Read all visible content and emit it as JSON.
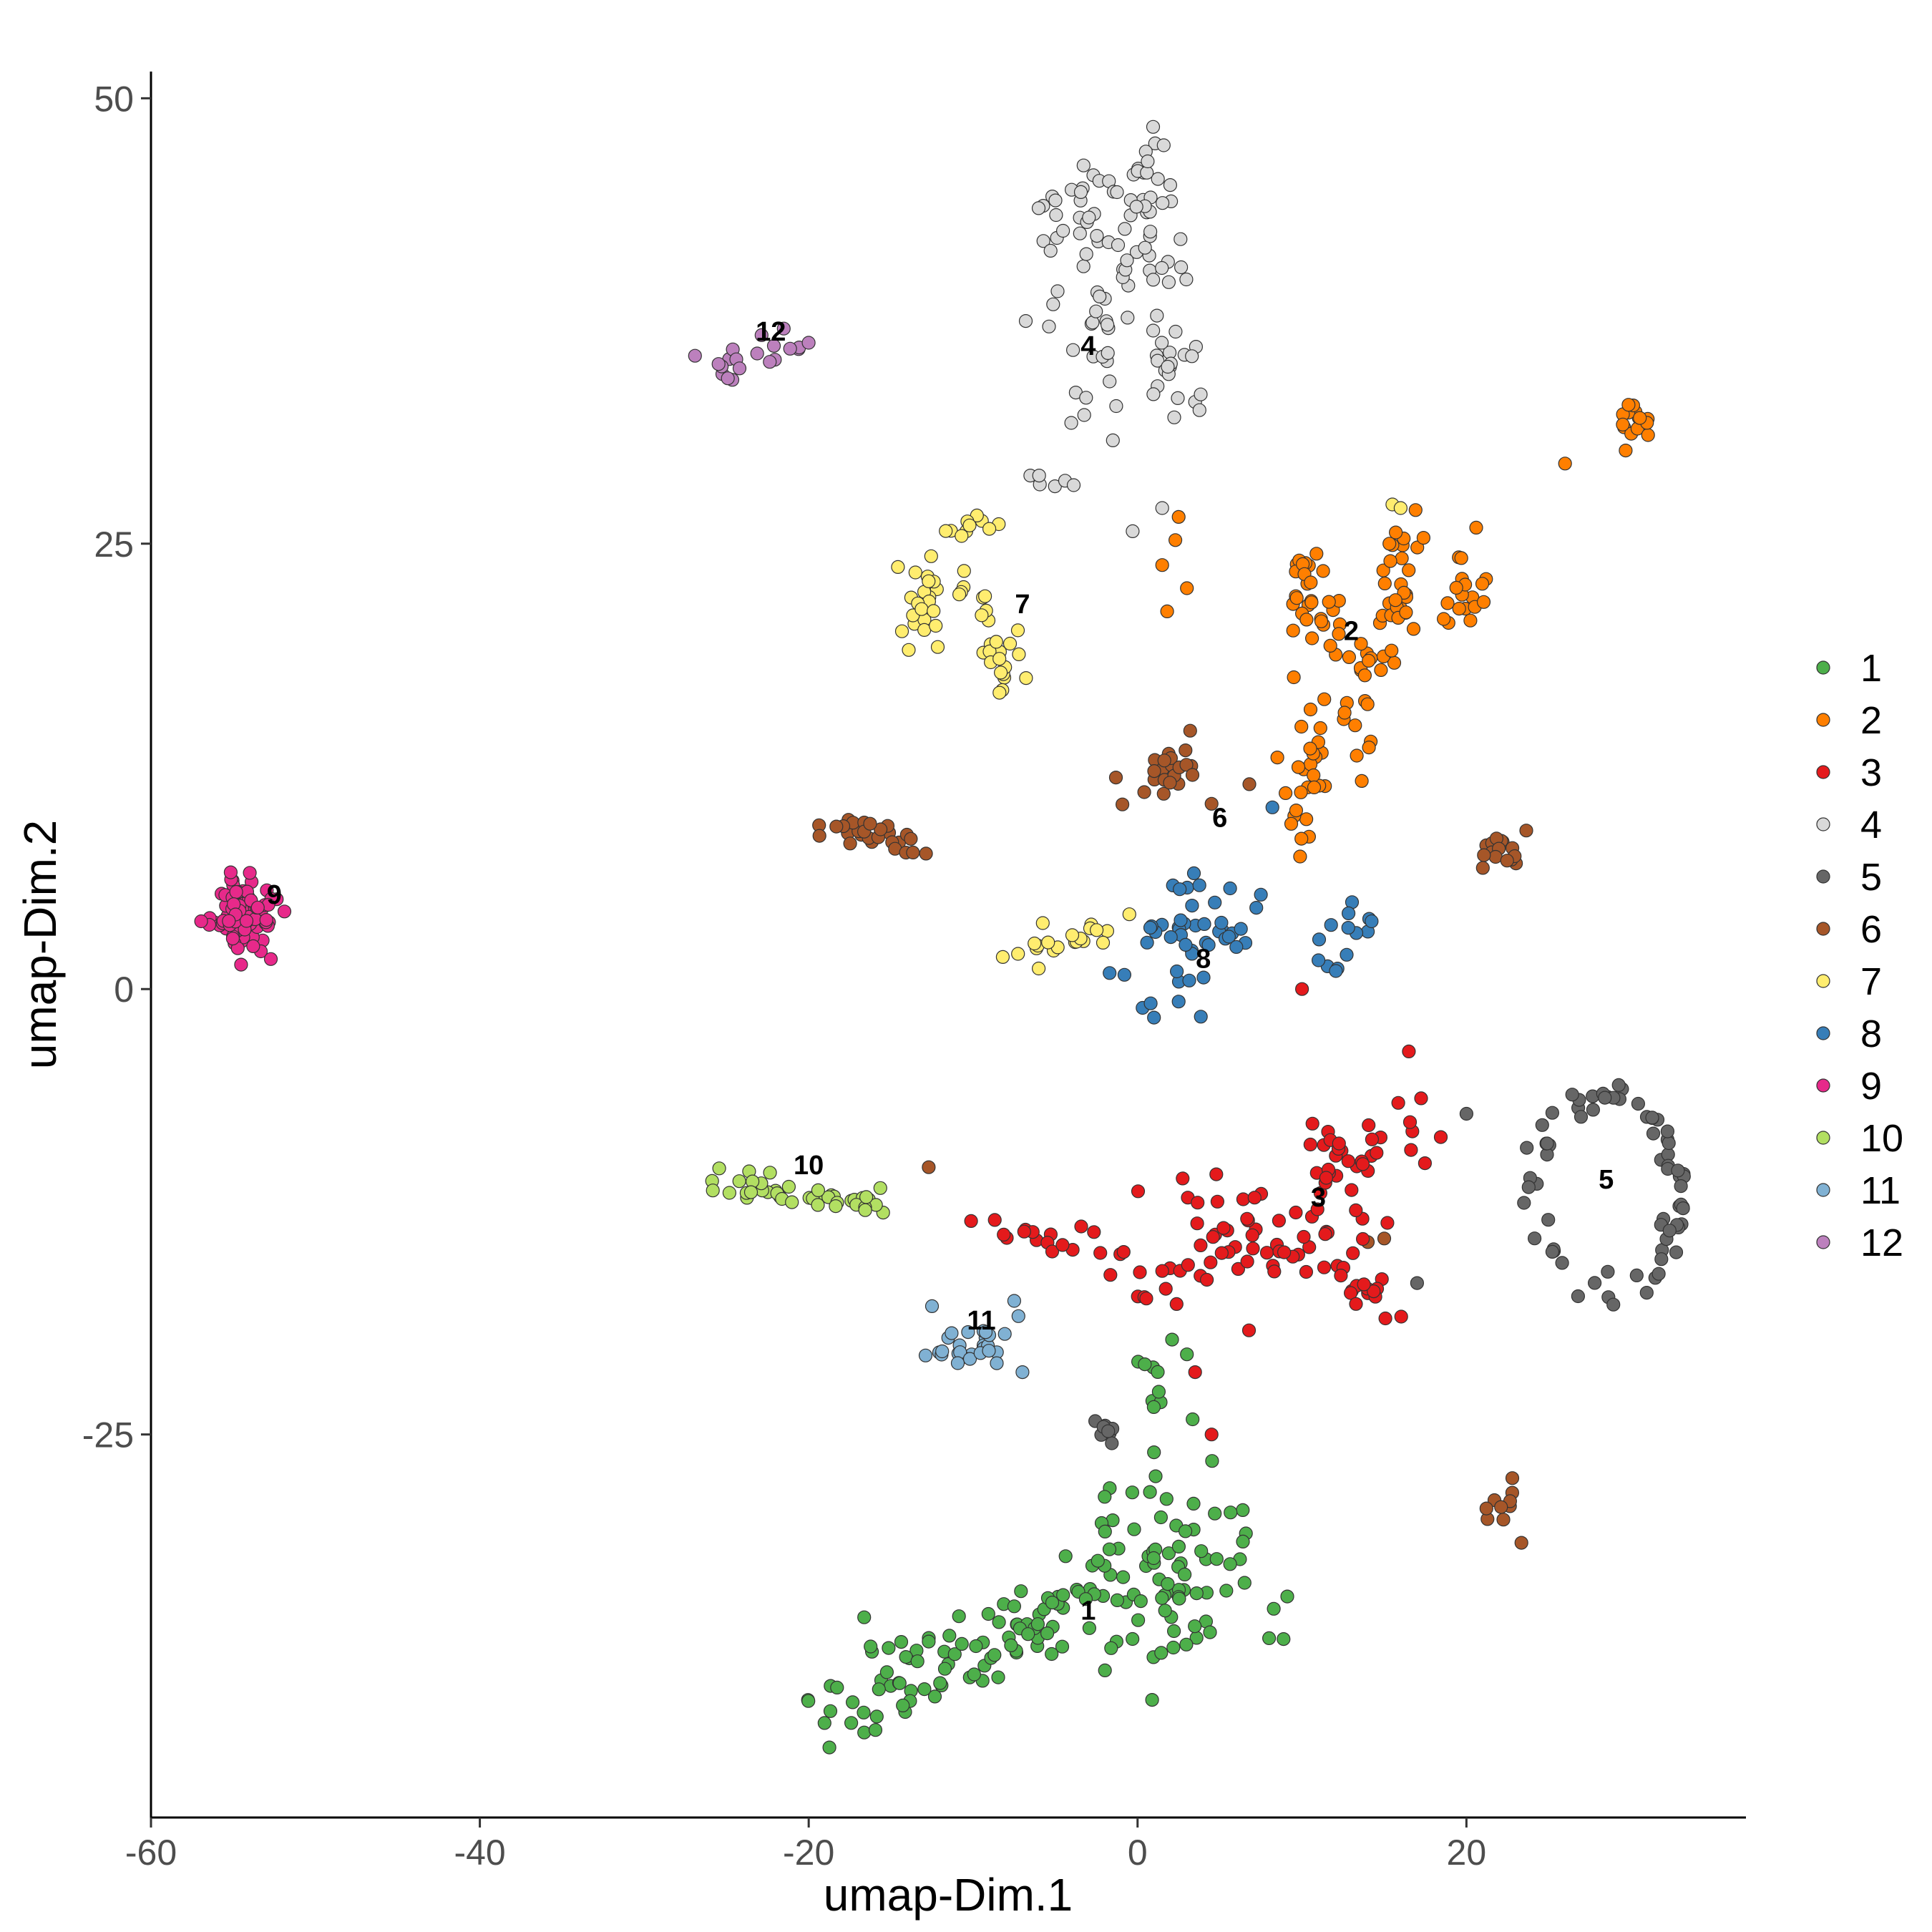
{
  "chart_data": {
    "type": "scatter",
    "title": "",
    "xlabel": "umap-Dim.1",
    "ylabel": "umap-Dim.2",
    "xlim": [
      -60,
      37
    ],
    "ylim": [
      -46.5,
      51.5
    ],
    "xticks": [
      -60,
      -40,
      -20,
      0,
      20
    ],
    "yticks": [
      -25,
      0,
      25,
      50
    ],
    "xtick_labels": [
      "-60",
      "-40",
      "-20",
      "0",
      "20"
    ],
    "ytick_labels": [
      "-25",
      "0",
      "25",
      "50"
    ],
    "grid": false,
    "legend_position": "right",
    "clusters": [
      {
        "id": "1",
        "color": "#4DAF4A",
        "label_pos": [
          -3,
          -35
        ]
      },
      {
        "id": "2",
        "color": "#FF7F00",
        "label_pos": [
          13,
          20
        ]
      },
      {
        "id": "3",
        "color": "#E41A1C",
        "label_pos": [
          11,
          -11.8
        ]
      },
      {
        "id": "4",
        "color": "#D9D9D9",
        "label_pos": [
          -3,
          36
        ]
      },
      {
        "id": "5",
        "color": "#666666",
        "label_pos": [
          28.5,
          -10.8
        ]
      },
      {
        "id": "6",
        "color": "#A65628",
        "label_pos": [
          5,
          9.5
        ]
      },
      {
        "id": "7",
        "color": "#FFED6F",
        "label_pos": [
          -7,
          21.5
        ]
      },
      {
        "id": "8",
        "color": "#377EB8",
        "label_pos": [
          4,
          1.6
        ]
      },
      {
        "id": "9",
        "color": "#E7298A",
        "label_pos": [
          -52.5,
          5.2
        ]
      },
      {
        "id": "10",
        "color": "#B2DF62",
        "label_pos": [
          -20,
          -10
        ]
      },
      {
        "id": "11",
        "color": "#80B1D3",
        "label_pos": [
          -9.5,
          -18.7
        ]
      },
      {
        "id": "12",
        "color": "#BC80BD",
        "label_pos": [
          -22.3,
          36.8
        ]
      }
    ],
    "blobs": [
      {
        "cluster": "9",
        "shape": "gauss",
        "n": 95,
        "x": [
          -54.2,
          1.0
        ],
        "y": [
          4.2,
          1.0
        ]
      },
      {
        "cluster": "12",
        "shape": "segment",
        "n": 20,
        "from": [
          -26,
          34.8
        ],
        "to": [
          -20,
          36.2
        ],
        "jitter": 0.6
      },
      {
        "cluster": "4",
        "shape": "segment",
        "n": 55,
        "from": [
          -3,
          46
        ],
        "to": [
          -3,
          33
        ],
        "jitter": 1.5
      },
      {
        "cluster": "4",
        "shape": "segment",
        "n": 40,
        "from": [
          0,
          47
        ],
        "to": [
          1,
          40
        ],
        "jitter": 1.0
      },
      {
        "cluster": "4",
        "shape": "gauss",
        "n": 22,
        "x": [
          2.2,
          1.2
        ],
        "y": [
          35,
          1.8
        ]
      },
      {
        "cluster": "4",
        "shape": "segment",
        "n": 6,
        "from": [
          -7,
          29
        ],
        "to": [
          -4.5,
          28
        ],
        "jitter": 0.4
      },
      {
        "cluster": "4",
        "shape": "points",
        "pts": [
          [
            -1.5,
            30.8
          ],
          [
            1.5,
            27
          ],
          [
            -0.3,
            25.7
          ],
          [
            -6.8,
            37.5
          ]
        ]
      },
      {
        "cluster": "7",
        "shape": "gauss",
        "n": 22,
        "x": [
          -13,
          0.6
        ],
        "y": [
          21.5,
          1.3
        ]
      },
      {
        "cluster": "7",
        "shape": "segment",
        "n": 10,
        "from": [
          -12.5,
          24.5
        ],
        "to": [
          -8,
          27
        ],
        "jitter": 0.5
      },
      {
        "cluster": "7",
        "shape": "gauss",
        "n": 18,
        "x": [
          -8.5,
          0.8
        ],
        "y": [
          18.5,
          1.0
        ]
      },
      {
        "cluster": "7",
        "shape": "segment",
        "n": 8,
        "from": [
          -11,
          22.5
        ],
        "to": [
          -9,
          20.5
        ],
        "jitter": 0.4
      },
      {
        "cluster": "7",
        "shape": "segment",
        "n": 20,
        "from": [
          -7.5,
          1.8
        ],
        "to": [
          -2,
          3.5
        ],
        "jitter": 0.5
      },
      {
        "cluster": "7",
        "shape": "points",
        "pts": [
          [
            15.5,
            27.2
          ],
          [
            16,
            27.0
          ],
          [
            -0.5,
            4.2
          ]
        ]
      },
      {
        "cluster": "2",
        "shape": "gauss",
        "n": 16,
        "x": [
          30,
          0.6
        ],
        "y": [
          31.8,
          0.6
        ]
      },
      {
        "cluster": "2",
        "shape": "segment",
        "n": 40,
        "from": [
          11,
          12
        ],
        "to": [
          15,
          19.5
        ],
        "jitter": 1.0
      },
      {
        "cluster": "2",
        "shape": "segment",
        "n": 30,
        "from": [
          10,
          23.5
        ],
        "to": [
          12,
          19
        ],
        "jitter": 0.7
      },
      {
        "cluster": "2",
        "shape": "segment",
        "n": 25,
        "from": [
          16,
          26.5
        ],
        "to": [
          16,
          20
        ],
        "jitter": 0.6
      },
      {
        "cluster": "2",
        "shape": "gauss",
        "n": 18,
        "x": [
          19.5,
          0.9
        ],
        "y": [
          22,
          1.2
        ]
      },
      {
        "cluster": "2",
        "shape": "segment",
        "n": 10,
        "from": [
          10,
          12
        ],
        "to": [
          10,
          7.5
        ],
        "jitter": 0.5
      },
      {
        "cluster": "2",
        "shape": "points",
        "pts": [
          [
            2.5,
            26.5
          ],
          [
            2.3,
            25.2
          ],
          [
            1.5,
            23.8
          ],
          [
            3,
            22.5
          ],
          [
            1.8,
            21.2
          ],
          [
            26,
            29.5
          ],
          [
            9.5,
            17.5
          ],
          [
            8.5,
            13
          ],
          [
            10.5,
            13.5
          ],
          [
            9,
            11
          ]
        ]
      },
      {
        "cluster": "6",
        "shape": "gauss",
        "n": 22,
        "x": [
          1.8,
          1.2
        ],
        "y": [
          12.2,
          0.9
        ]
      },
      {
        "cluster": "6",
        "shape": "points",
        "pts": [
          [
            3.2,
            14.5
          ],
          [
            6.8,
            11.5
          ],
          [
            4.5,
            10.4
          ]
        ]
      },
      {
        "cluster": "6",
        "shape": "segment",
        "n": 28,
        "from": [
          -19.5,
          9.5
        ],
        "to": [
          -13.5,
          8
        ],
        "jitter": 0.5
      },
      {
        "cluster": "6",
        "shape": "gauss",
        "n": 15,
        "x": [
          22.5,
          0.7
        ],
        "y": [
          8.2,
          0.6
        ]
      },
      {
        "cluster": "6",
        "shape": "points",
        "pts": [
          [
            21,
            6.8
          ],
          [
            -12.7,
            -10
          ],
          [
            14,
            -14.2
          ],
          [
            15,
            -14
          ]
        ]
      },
      {
        "cluster": "6",
        "shape": "gauss",
        "n": 10,
        "x": [
          22.5,
          0.5
        ],
        "y": [
          -29.2,
          0.9
        ]
      },
      {
        "cluster": "8",
        "shape": "gauss",
        "n": 42,
        "x": [
          3.5,
          1.7
        ],
        "y": [
          3,
          1.7
        ]
      },
      {
        "cluster": "8",
        "shape": "gauss",
        "n": 14,
        "x": [
          12.5,
          1.1
        ],
        "y": [
          3.7,
          1.2
        ]
      },
      {
        "cluster": "8",
        "shape": "points",
        "pts": [
          [
            -1.7,
            0.9
          ],
          [
            -0.8,
            0.8
          ],
          [
            1.0,
            -1.6
          ],
          [
            0.8,
            -0.8
          ],
          [
            2.5,
            -0.7
          ],
          [
            8.2,
            10.2
          ],
          [
            7.5,
            5.3
          ]
        ]
      },
      {
        "cluster": "3",
        "shape": "segment",
        "n": 30,
        "from": [
          -10,
          -13
        ],
        "to": [
          3,
          -16.5
        ],
        "jitter": 0.7
      },
      {
        "cluster": "3",
        "shape": "gauss",
        "n": 60,
        "x": [
          8,
          3.5
        ],
        "y": [
          -13.5,
          1.8
        ]
      },
      {
        "cluster": "3",
        "shape": "segment",
        "n": 28,
        "from": [
          10,
          -9
        ],
        "to": [
          18,
          -7.5
        ],
        "jitter": 1.0
      },
      {
        "cluster": "3",
        "shape": "segment",
        "n": 14,
        "from": [
          12,
          -16
        ],
        "to": [
          16,
          -18.5
        ],
        "jitter": 0.6
      },
      {
        "cluster": "3",
        "shape": "points",
        "pts": [
          [
            10,
            0
          ],
          [
            16.5,
            -3.5
          ],
          [
            3.5,
            -21.5
          ],
          [
            4.5,
            -25
          ]
        ]
      },
      {
        "cluster": "5",
        "shape": "ring",
        "n": 70,
        "cx": [
          28.5,
          -11.5
        ],
        "r": [
          4.5,
          5.5
        ],
        "jitter": 0.4
      },
      {
        "cluster": "5",
        "shape": "points",
        "pts": [
          [
            20,
            -7
          ],
          [
            17,
            -16.5
          ],
          [
            23.5,
            -12
          ]
        ]
      },
      {
        "cluster": "5",
        "shape": "gauss",
        "n": 8,
        "x": [
          -2,
          0.4
        ],
        "y": [
          -24.8,
          0.6
        ]
      },
      {
        "cluster": "10",
        "shape": "segment",
        "n": 42,
        "from": [
          -26.5,
          -10.8
        ],
        "to": [
          -15.5,
          -12.2
        ],
        "jitter": 0.5
      },
      {
        "cluster": "11",
        "shape": "gauss",
        "n": 28,
        "x": [
          -10.5,
          1.3
        ],
        "y": [
          -20,
          0.8
        ]
      },
      {
        "cluster": "11",
        "shape": "points",
        "pts": [
          [
            -7.5,
            -17.5
          ],
          [
            -12.5,
            -17.8
          ],
          [
            -7,
            -21.5
          ]
        ]
      },
      {
        "cluster": "1",
        "shape": "gauss",
        "n": 85,
        "x": [
          2,
          2.5
        ],
        "y": [
          -33,
          2.6
        ]
      },
      {
        "cluster": "1",
        "shape": "segment",
        "n": 90,
        "from": [
          -19,
          -40.5
        ],
        "to": [
          -3,
          -34
        ],
        "jitter": 1.3
      },
      {
        "cluster": "1",
        "shape": "gauss",
        "n": 10,
        "x": [
          2,
          1.2
        ],
        "y": [
          -22.5,
          1.1
        ]
      },
      {
        "cluster": "1",
        "shape": "points",
        "pts": [
          [
            1,
            -26
          ],
          [
            3,
            -20.5
          ],
          [
            -2,
            -28.5
          ]
        ]
      }
    ]
  }
}
